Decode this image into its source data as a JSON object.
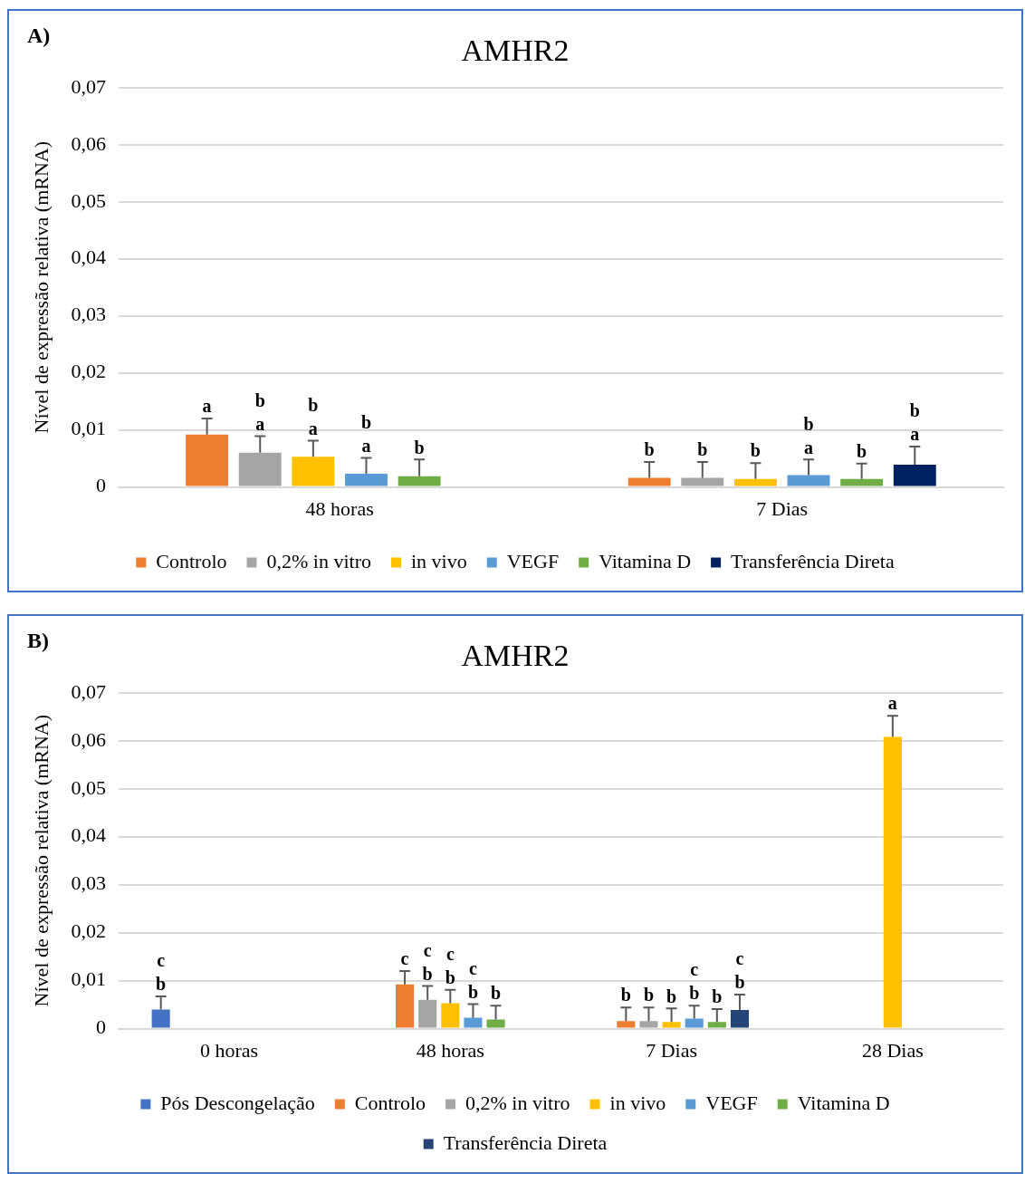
{
  "chart_data": [
    {
      "type": "bar",
      "title": "AMHR2",
      "ylabel": "Nível de expressão relativa (mRNA)",
      "annotations": [
        "A)"
      ],
      "categories": [
        "48 horas",
        "7 Dias"
      ],
      "series": [
        {
          "name": "Controlo",
          "color": "#ed7d31",
          "values": [
            0.0092,
            0.0016
          ],
          "errors": [
            [
              0.0092,
              0.012
            ],
            [
              0.0016,
              0.0044
            ]
          ],
          "value_labels": [
            "a",
            "b"
          ]
        },
        {
          "name": "0,2% in vitro",
          "color": "#a5a5a5",
          "values": [
            0.006,
            0.0016
          ],
          "errors": [
            [
              0.006,
              0.0089
            ],
            [
              0.0016,
              0.0044
            ]
          ],
          "value_labels": [
            "b\na",
            "b"
          ]
        },
        {
          "name": "in vivo",
          "color": "#ffc000",
          "values": [
            0.0053,
            0.0014
          ],
          "errors": [
            [
              0.0053,
              0.0081
            ],
            [
              0.0014,
              0.0042
            ]
          ],
          "value_labels": [
            "b\na",
            "b"
          ]
        },
        {
          "name": "VEGF",
          "color": "#5b9bd5",
          "values": [
            0.0023,
            0.0021
          ],
          "errors": [
            [
              0.0023,
              0.0051
            ],
            [
              0.0021,
              0.0048
            ]
          ],
          "value_labels": [
            "b\na",
            "b\na"
          ]
        },
        {
          "name": "Vitamina D",
          "color": "#70ad47",
          "values": [
            0.0019,
            0.0014
          ],
          "errors": [
            [
              0.0019,
              0.0048
            ],
            [
              0.0014,
              0.0041
            ]
          ],
          "value_labels": [
            "b",
            "b"
          ]
        },
        {
          "name": "Transferência Direta",
          "color": "#002060",
          "values": [
            null,
            0.0039
          ],
          "errors": [
            null,
            [
              0.0039,
              0.0071
            ]
          ],
          "value_labels": [
            null,
            "b\na"
          ]
        }
      ],
      "ylim": [
        0,
        0.07
      ],
      "yticks": [
        0,
        {
          "value": 0.01,
          "label": "0,01"
        },
        {
          "value": 0.02,
          "label": "0,02"
        },
        {
          "value": 0.03,
          "label": "0,03"
        },
        {
          "value": 0.04,
          "label": "0,04"
        },
        {
          "value": 0.05,
          "label": "0,05"
        },
        {
          "value": 0.06,
          "label": "0,06"
        },
        {
          "value": 0.07,
          "label": "0,07"
        }
      ],
      "grid": "y",
      "legend": "bottom"
    },
    {
      "type": "bar",
      "title": "AMHR2",
      "ylabel": "Nível de expressão relativa (mRNA)",
      "annotations": [
        "B)"
      ],
      "categories": [
        "0 horas",
        "48 horas",
        "7 Dias",
        "28 Dias"
      ],
      "series": [
        {
          "name": "Pós Descongelação",
          "color": "#4472c4",
          "values": [
            0.004,
            null,
            null,
            null
          ],
          "errors": [
            [
              0.004,
              0.0067
            ],
            null,
            null,
            null
          ],
          "value_labels": [
            "c\nb",
            null,
            null,
            null
          ]
        },
        {
          "name": "Controlo",
          "color": "#ed7d31",
          "values": [
            null,
            0.0092,
            0.0016,
            null
          ],
          "errors": [
            null,
            [
              0.0092,
              0.012
            ],
            [
              0.0016,
              0.0044
            ],
            null
          ],
          "value_labels": [
            null,
            "c",
            "b",
            null
          ]
        },
        {
          "name": "0,2% in vitro",
          "color": "#a5a5a5",
          "values": [
            null,
            0.006,
            0.0016,
            null
          ],
          "errors": [
            null,
            [
              0.006,
              0.0089
            ],
            [
              0.0016,
              0.0044
            ],
            null
          ],
          "value_labels": [
            null,
            "c\nb",
            "b",
            null
          ]
        },
        {
          "name": "in vivo",
          "color": "#ffc000",
          "values": [
            null,
            0.0053,
            0.0014,
            0.0608
          ],
          "errors": [
            null,
            [
              0.0053,
              0.0081
            ],
            [
              0.0014,
              0.0042
            ],
            [
              0.0608,
              0.0652
            ]
          ],
          "value_labels": [
            null,
            "c\nb",
            "b",
            "a"
          ]
        },
        {
          "name": "VEGF",
          "color": "#5b9bd5",
          "values": [
            null,
            0.0023,
            0.0021,
            null
          ],
          "errors": [
            null,
            [
              0.0023,
              0.0051
            ],
            [
              0.0021,
              0.0048
            ],
            null
          ],
          "value_labels": [
            null,
            "c\nb",
            "c\nb",
            null
          ]
        },
        {
          "name": "Vitamina D",
          "color": "#70ad47",
          "values": [
            null,
            0.0019,
            0.0014,
            null
          ],
          "errors": [
            null,
            [
              0.0019,
              0.0048
            ],
            [
              0.0014,
              0.0041
            ],
            null
          ],
          "value_labels": [
            null,
            "b",
            "b",
            null
          ]
        },
        {
          "name": "Transferência Direta",
          "color": "#264478",
          "values": [
            null,
            null,
            0.0039,
            null
          ],
          "errors": [
            null,
            null,
            [
              0.0039,
              0.0071
            ],
            null
          ],
          "value_labels": [
            null,
            null,
            "c\nb",
            null
          ]
        }
      ],
      "ylim": [
        0,
        0.07
      ],
      "yticks": [
        0,
        {
          "value": 0.01,
          "label": "0,01"
        },
        {
          "value": 0.02,
          "label": "0,02"
        },
        {
          "value": 0.03,
          "label": "0,03"
        },
        {
          "value": 0.04,
          "label": "0,04"
        },
        {
          "value": 0.05,
          "label": "0,05"
        },
        {
          "value": 0.06,
          "label": "0,06"
        },
        {
          "value": 0.07,
          "label": "0,07"
        }
      ],
      "grid": "y",
      "legend": "bottom"
    }
  ]
}
